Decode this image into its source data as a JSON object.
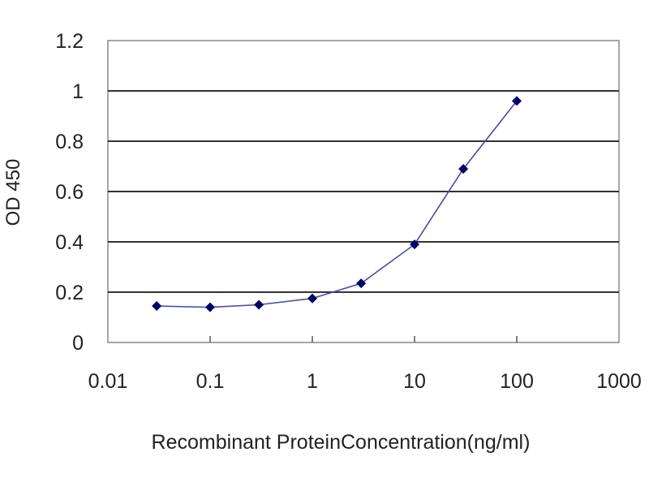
{
  "chart_data": {
    "type": "line",
    "title": "",
    "xlabel": "Recombinant ProteinConcentration(ng/ml)",
    "ylabel": "OD 450",
    "xscale": "log",
    "xlim": [
      0.01,
      1000
    ],
    "ylim": [
      0,
      1.2
    ],
    "xticks": [
      0.01,
      0.1,
      1,
      10,
      100,
      1000
    ],
    "xtick_labels": [
      "0.01",
      "0.1",
      "1",
      "10",
      "100",
      "1000"
    ],
    "yticks": [
      0,
      0.2,
      0.4,
      0.6,
      0.8,
      1,
      1.2
    ],
    "ytick_labels": [
      "0",
      "0.2",
      "0.4",
      "0.6",
      "0.8",
      "1",
      "1.2"
    ],
    "grid": "horizontal",
    "legend": "none",
    "series": [
      {
        "name": "OD 450",
        "color": "#000066",
        "line_color": "#4a4aa8",
        "marker": "diamond",
        "x": [
          0.03,
          0.1,
          0.3,
          1,
          3,
          10,
          30,
          100
        ],
        "y": [
          0.145,
          0.14,
          0.15,
          0.175,
          0.235,
          0.39,
          0.69,
          0.96
        ]
      }
    ]
  }
}
